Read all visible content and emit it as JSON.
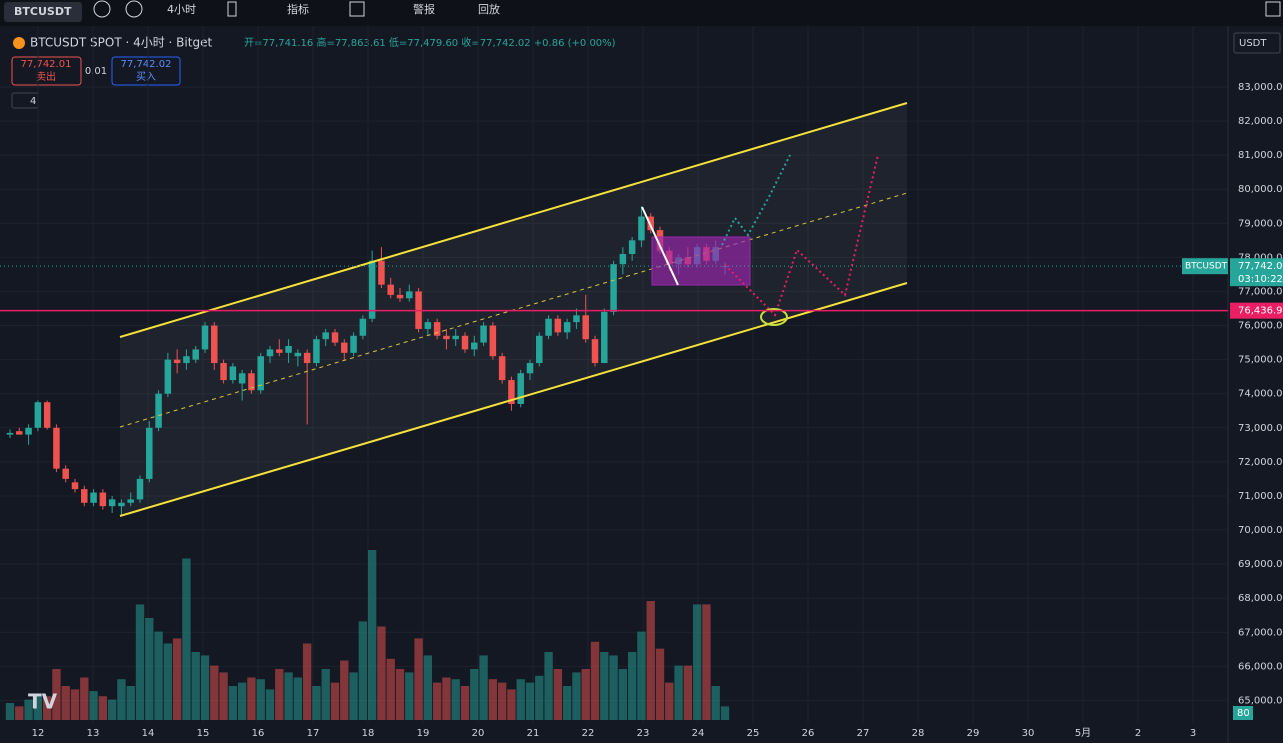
{
  "toolbar": {
    "symbol": "BTCUSDT",
    "interval": "4小时",
    "indicators": "指标",
    "alert": "警报",
    "replay": "回放"
  },
  "header": {
    "title": "BTCUSDT SPOT · 4小时 · Bitget",
    "ohlc": "开=77,741.16 高=77,863.61 低=77,479.60 收=77,742.02 +0.86 (+0.00%)",
    "sell_price": "77,742.01",
    "sell": "卖出",
    "spread": "0.01",
    "buy_price": "77,742.02",
    "buy": "买入",
    "indicator_count": "4",
    "currency": "USDT"
  },
  "chart_data": {
    "type": "candlestick",
    "candles": [
      [
        72800,
        72950,
        72700,
        72850
      ],
      [
        72900,
        73000,
        72800,
        72800
      ],
      [
        72800,
        73100,
        72500,
        73000
      ],
      [
        73000,
        73800,
        72900,
        73750
      ],
      [
        73750,
        73800,
        72950,
        73000
      ],
      [
        73000,
        73100,
        71700,
        71800
      ],
      [
        71800,
        71900,
        71400,
        71500
      ],
      [
        71400,
        71500,
        71100,
        71200
      ],
      [
        71200,
        71300,
        70700,
        70800
      ],
      [
        70800,
        71200,
        70700,
        71100
      ],
      [
        71100,
        71200,
        70600,
        70700
      ],
      [
        70700,
        71000,
        70500,
        70900
      ],
      [
        70700,
        70900,
        70400,
        70800
      ],
      [
        70800,
        71100,
        70700,
        70900
      ],
      [
        70900,
        71600,
        70800,
        71500
      ],
      [
        71500,
        73200,
        71400,
        73000
      ],
      [
        73000,
        74100,
        72900,
        74000
      ],
      [
        74000,
        75200,
        73900,
        75000
      ],
      [
        75000,
        75300,
        74600,
        74900
      ],
      [
        74900,
        75300,
        74700,
        75100
      ],
      [
        75000,
        75400,
        74900,
        75300
      ],
      [
        75300,
        76100,
        75200,
        76000
      ],
      [
        76000,
        76100,
        74700,
        74900
      ],
      [
        74900,
        75000,
        74300,
        74400
      ],
      [
        74400,
        74900,
        74300,
        74800
      ],
      [
        74300,
        74700,
        73800,
        74600
      ],
      [
        74600,
        74700,
        74000,
        74100
      ],
      [
        74100,
        75200,
        74000,
        75100
      ],
      [
        75100,
        75400,
        74900,
        75300
      ],
      [
        75300,
        75600,
        75100,
        75200
      ],
      [
        75200,
        75600,
        74900,
        75400
      ],
      [
        75100,
        75300,
        74800,
        75200
      ],
      [
        75200,
        75300,
        73100,
        74900
      ],
      [
        74900,
        75700,
        74800,
        75600
      ],
      [
        75600,
        75900,
        75400,
        75800
      ],
      [
        75800,
        75900,
        75400,
        75500
      ],
      [
        75500,
        75600,
        75000,
        75200
      ],
      [
        75200,
        75800,
        75100,
        75700
      ],
      [
        75700,
        76300,
        75600,
        76200
      ],
      [
        76200,
        78200,
        76100,
        77900
      ],
      [
        77900,
        78300,
        77100,
        77200
      ],
      [
        77200,
        77400,
        76800,
        76900
      ],
      [
        76900,
        77100,
        76700,
        76800
      ],
      [
        76800,
        77200,
        76700,
        77000
      ],
      [
        77000,
        77100,
        75800,
        75900
      ],
      [
        75900,
        76200,
        75700,
        76100
      ],
      [
        76100,
        76200,
        75600,
        75700
      ],
      [
        75700,
        75900,
        75300,
        75600
      ],
      [
        75600,
        75900,
        75400,
        75700
      ],
      [
        75700,
        75800,
        75200,
        75300
      ],
      [
        75300,
        75700,
        75100,
        75500
      ],
      [
        75500,
        76100,
        75400,
        76000
      ],
      [
        76000,
        76100,
        75000,
        75100
      ],
      [
        75100,
        75200,
        74300,
        74400
      ],
      [
        74400,
        74500,
        73500,
        73700
      ],
      [
        73700,
        74700,
        73600,
        74600
      ],
      [
        74600,
        75000,
        74400,
        74900
      ],
      [
        74900,
        75800,
        74800,
        75700
      ],
      [
        75700,
        76300,
        75600,
        76200
      ],
      [
        76200,
        76300,
        75700,
        75800
      ],
      [
        75800,
        76200,
        75600,
        76100
      ],
      [
        76100,
        76500,
        75900,
        76300
      ],
      [
        76300,
        76900,
        75500,
        75600
      ],
      [
        75600,
        75700,
        74800,
        74900
      ],
      [
        74900,
        76500,
        74900,
        76400
      ],
      [
        76400,
        77900,
        76300,
        77800
      ],
      [
        77800,
        78300,
        77500,
        78100
      ],
      [
        78100,
        78600,
        77900,
        78500
      ],
      [
        78500,
        79500,
        78300,
        79200
      ],
      [
        79200,
        79300,
        78700,
        78800
      ],
      [
        78800,
        78900,
        78100,
        78200
      ],
      [
        78200,
        78300,
        77600,
        77800
      ],
      [
        77800,
        78100,
        77500,
        78000
      ],
      [
        78000,
        78300,
        77700,
        77800
      ],
      [
        77800,
        78400,
        77700,
        78300
      ],
      [
        78300,
        78400,
        77800,
        77900
      ],
      [
        77900,
        78500,
        77800,
        78300
      ],
      [
        77741.16,
        77863.61,
        77479.6,
        77742.02
      ]
    ],
    "volumes": [
      10,
      8,
      12,
      15,
      14,
      30,
      20,
      18,
      25,
      17,
      14,
      12,
      24,
      20,
      68,
      60,
      52,
      45,
      48,
      95,
      40,
      38,
      32,
      28,
      20,
      22,
      25,
      24,
      18,
      30,
      28,
      25,
      45,
      20,
      30,
      22,
      35,
      28,
      58,
      100,
      55,
      36,
      30,
      28,
      48,
      38,
      22,
      25,
      24,
      20,
      30,
      38,
      24,
      22,
      18,
      24,
      22,
      26,
      40,
      30,
      20,
      28,
      30,
      46,
      40,
      38,
      30,
      40,
      52,
      70,
      42,
      22,
      32,
      32,
      68,
      68,
      20,
      8
    ],
    "up_color": "#26a69a",
    "down_color": "#ef5350",
    "ylim": [
      64338,
      84672
    ],
    "yticks": [
      {
        "value": 65000,
        "label": "65,000.00"
      },
      {
        "value": 66000,
        "label": "66,000.00"
      },
      {
        "value": 67000,
        "label": "67,000.00"
      },
      {
        "value": 68000,
        "label": "68,000.00"
      },
      {
        "value": 69000,
        "label": "69,000.00"
      },
      {
        "value": 70000,
        "label": "70,000.00"
      },
      {
        "value": 71000,
        "label": "71,000.00"
      },
      {
        "value": 72000,
        "label": "72,000.00"
      },
      {
        "value": 73000,
        "label": "73,000.00"
      },
      {
        "value": 74000,
        "label": "74,000.00"
      },
      {
        "value": 75000,
        "label": "75,000.00"
      },
      {
        "value": 76000,
        "label": "76,000.00"
      },
      {
        "value": 77000,
        "label": "77,000.00"
      },
      {
        "value": 78000,
        "label": "78,000.00"
      },
      {
        "value": 79000,
        "label": "79,000.00"
      },
      {
        "value": 80000,
        "label": "80,000.00"
      },
      {
        "value": 81000,
        "label": "81,000.00"
      },
      {
        "value": 82000,
        "label": "82,000.00"
      },
      {
        "value": 83000,
        "label": "83,000.00"
      }
    ],
    "x_labels": [
      "12",
      "13",
      "14",
      "15",
      "16",
      "17",
      "18",
      "19",
      "20",
      "21",
      "22",
      "23",
      "24",
      "25",
      "26",
      "27",
      "28",
      "29",
      "30",
      "5月",
      "2",
      "3"
    ],
    "current_symbol": "BTCUSDT",
    "current_price": {
      "value": 77742.02,
      "label": "77,742.02"
    },
    "countdown": "03:10:22",
    "level": {
      "value": 76436.9,
      "label": "76,436.90"
    },
    "volume_badge": "80"
  }
}
